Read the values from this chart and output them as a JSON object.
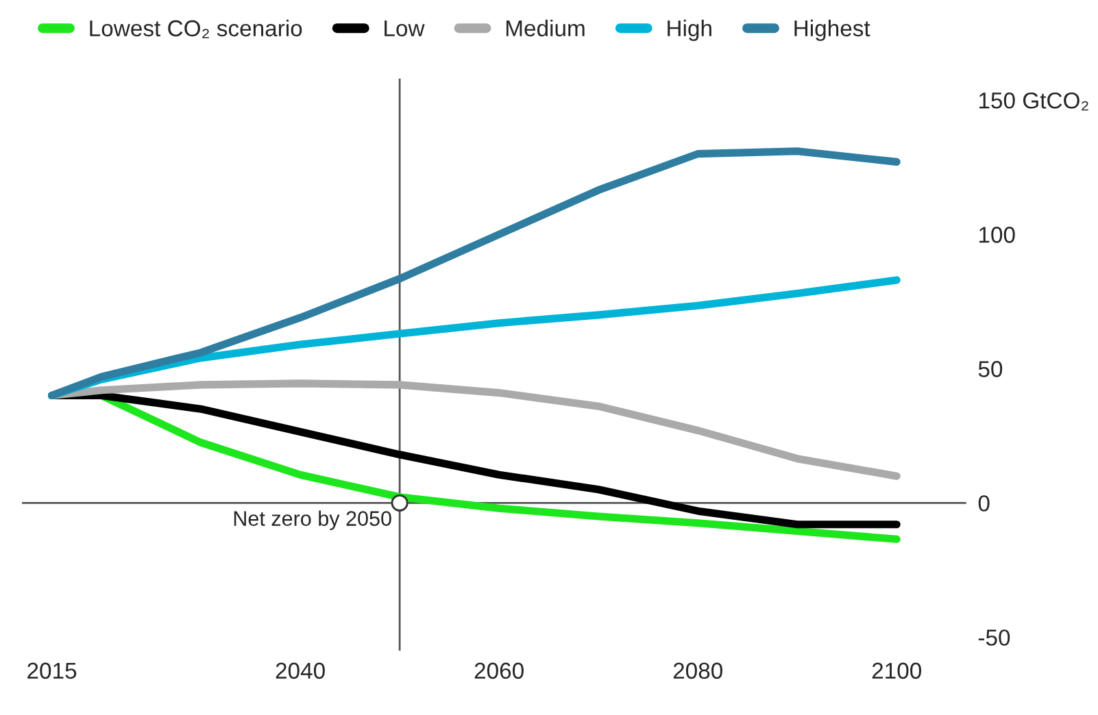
{
  "chart_data": {
    "type": "line",
    "x": [
      2015,
      2020,
      2030,
      2040,
      2050,
      2060,
      2070,
      2080,
      2090,
      2100
    ],
    "series": [
      {
        "name": "Lowest CO₂ scenario",
        "color": "#1ee61e",
        "values": [
          40,
          40,
          22.5,
          10.5,
          2.2,
          -2,
          -5,
          -7.5,
          -10.5,
          -13.5
        ]
      },
      {
        "name": "Low",
        "color": "#000000",
        "values": [
          40,
          40,
          35,
          26.5,
          18,
          10.5,
          5,
          -3,
          -8,
          -8
        ]
      },
      {
        "name": "Medium",
        "color": "#aaaaaa",
        "values": [
          40,
          42,
          44,
          44.5,
          44,
          41,
          36,
          27,
          16.5,
          10
        ]
      },
      {
        "name": "High",
        "color": "#00b4d8",
        "values": [
          40,
          46,
          54,
          59,
          63,
          67,
          70,
          73.5,
          78,
          83
        ]
      },
      {
        "name": "Highest",
        "color": "#2f7ea1",
        "values": [
          40,
          47,
          56,
          69,
          83.5,
          100,
          116.5,
          130,
          131,
          127
        ]
      }
    ],
    "xlim": [
      2012,
      2107
    ],
    "xticks": [
      2015,
      2040,
      2060,
      2080,
      2100
    ],
    "ylim": [
      -55,
      158
    ],
    "yticks": [
      -50,
      0,
      50,
      100,
      {
        "value": 150,
        "label": "150 GtCO₂"
      }
    ],
    "ref_lines": [
      {
        "axis": "y",
        "value": 0,
        "color": "#555555"
      },
      {
        "axis": "x",
        "value": 2050,
        "color": "#555555"
      }
    ],
    "annotations": [
      {
        "text": "Net zero by 2050",
        "x": 2050,
        "y": 0
      }
    ],
    "legend": "top",
    "grid": false,
    "marker": "none",
    "line_style": "solid"
  }
}
